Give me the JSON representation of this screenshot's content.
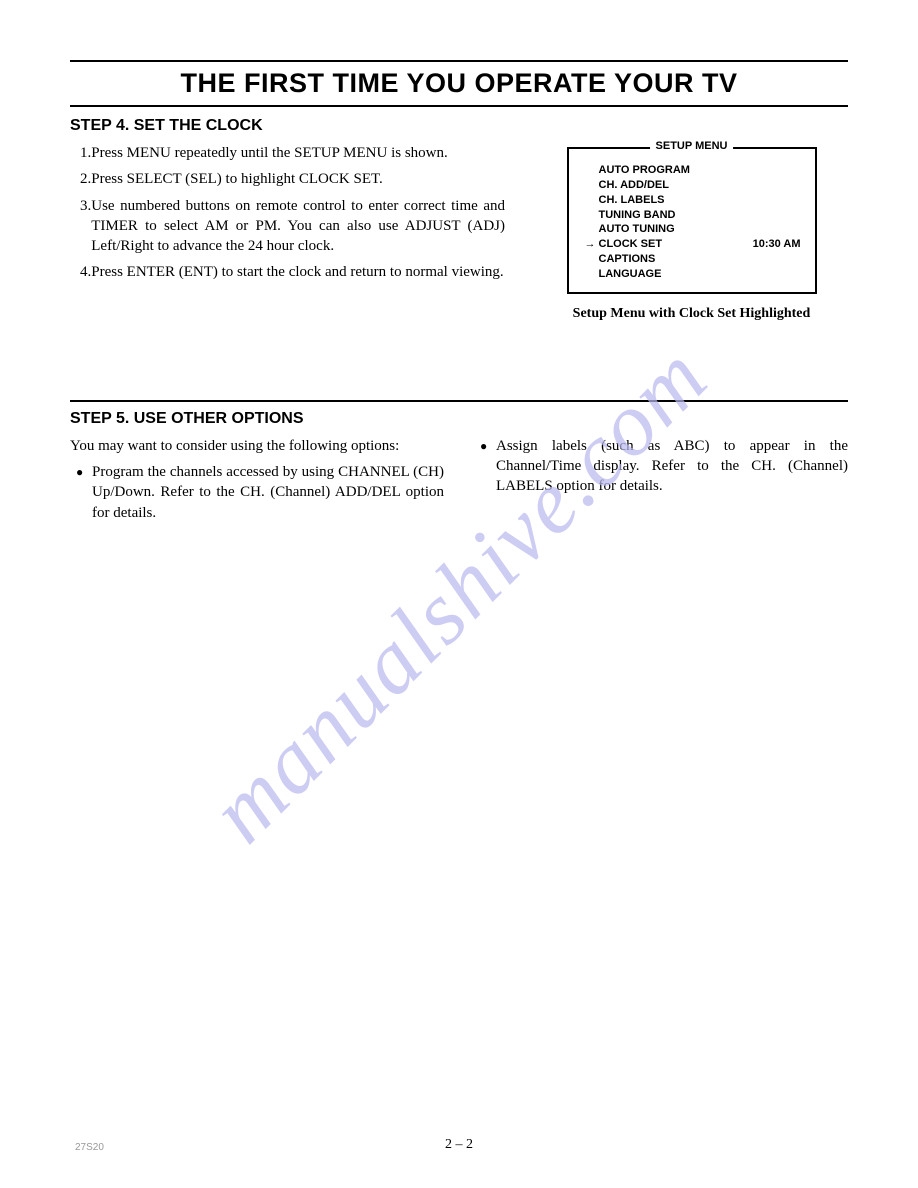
{
  "page": {
    "title": "THE FIRST TIME YOU OPERATE YOUR TV",
    "page_number": "2 – 2",
    "footer_code": "27S20",
    "watermark": "manualshive.com"
  },
  "step4": {
    "heading": "STEP 4. SET THE CLOCK",
    "items": [
      {
        "num": "1.",
        "text": "Press MENU repeatedly until the SETUP MENU is shown."
      },
      {
        "num": "2.",
        "text": "Press SELECT (SEL) to highlight CLOCK SET."
      },
      {
        "num": "3.",
        "text": "Use numbered buttons on remote control to enter correct time and TIMER to select AM or PM. You can also use ADJUST (ADJ) Left/Right to advance the 24 hour clock."
      },
      {
        "num": "4.",
        "text": "Press ENTER (ENT) to start the clock and return to normal viewing."
      }
    ]
  },
  "setup_menu": {
    "title": "SETUP MENU",
    "items": [
      {
        "label": "AUTO PROGRAM",
        "selected": false,
        "value": ""
      },
      {
        "label": "CH. ADD/DEL",
        "selected": false,
        "value": ""
      },
      {
        "label": "CH. LABELS",
        "selected": false,
        "value": ""
      },
      {
        "label": "TUNING BAND",
        "selected": false,
        "value": ""
      },
      {
        "label": "AUTO TUNING",
        "selected": false,
        "value": ""
      },
      {
        "label": "CLOCK SET",
        "selected": true,
        "value": "10:30 AM"
      },
      {
        "label": "CAPTIONS",
        "selected": false,
        "value": ""
      },
      {
        "label": "LANGUAGE",
        "selected": false,
        "value": ""
      }
    ],
    "caption": "Setup Menu with Clock Set Highlighted"
  },
  "step5": {
    "heading": "STEP 5. USE OTHER OPTIONS",
    "intro": "You may want to consider using the following options:",
    "left_bullets": [
      "Program the channels accessed by using CHANNEL (CH) Up/Down. Refer to the CH. (Channel) ADD/DEL option for details."
    ],
    "right_bullets": [
      "Assign labels (such as ABC) to appear in the Channel/Time display. Refer to the CH. (Channel) LABELS option for details."
    ]
  },
  "colors": {
    "background": "#ffffff",
    "text": "#000000",
    "watermark": "#b8b8ee",
    "border": "#000000"
  }
}
